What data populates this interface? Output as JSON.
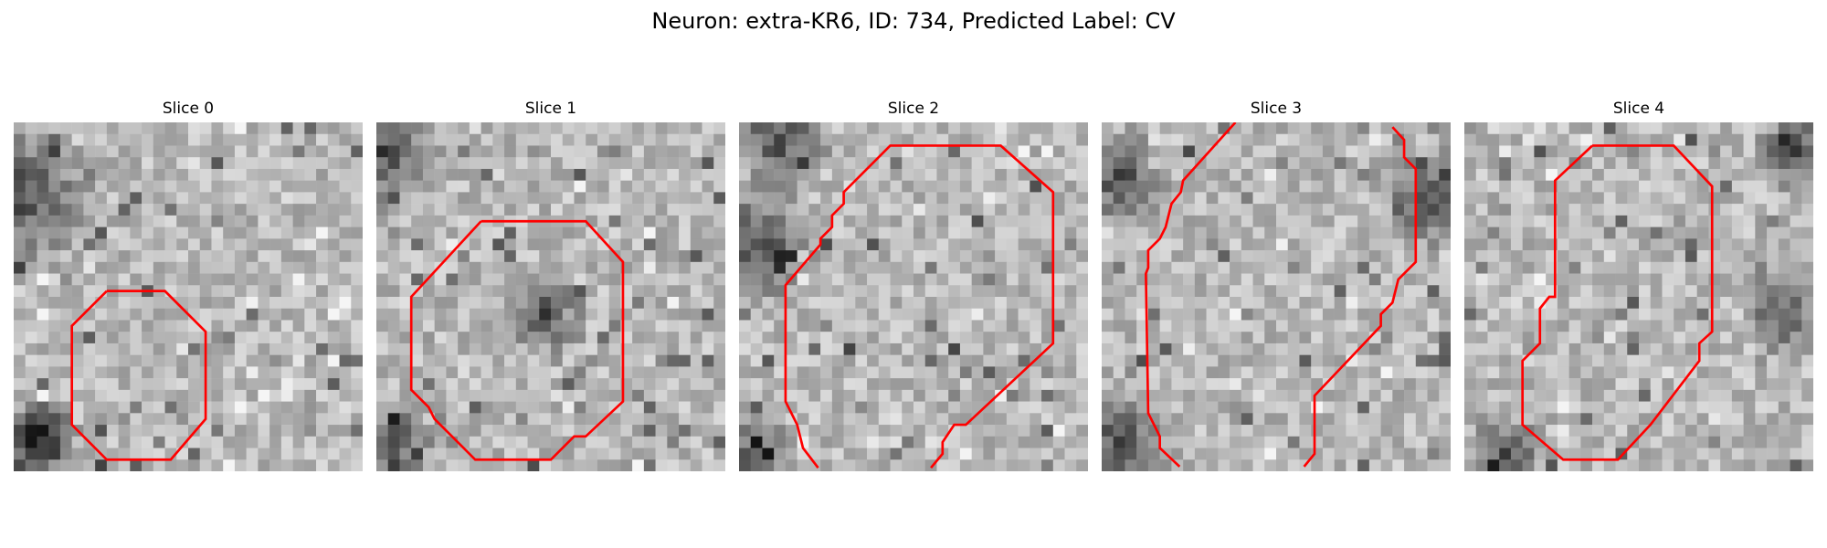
{
  "figure": {
    "title": "Neuron: extra-KR6, ID: 734, Predicted Label: CV"
  },
  "colors": {
    "contour": "#ff0000",
    "background": "#ffffff",
    "pixel_palette": "grayscale"
  },
  "panels": [
    {
      "title": "Slice 0"
    },
    {
      "title": "Slice 1"
    },
    {
      "title": "Slice 2"
    },
    {
      "title": "Slice 3"
    },
    {
      "title": "Slice 4"
    }
  ]
}
